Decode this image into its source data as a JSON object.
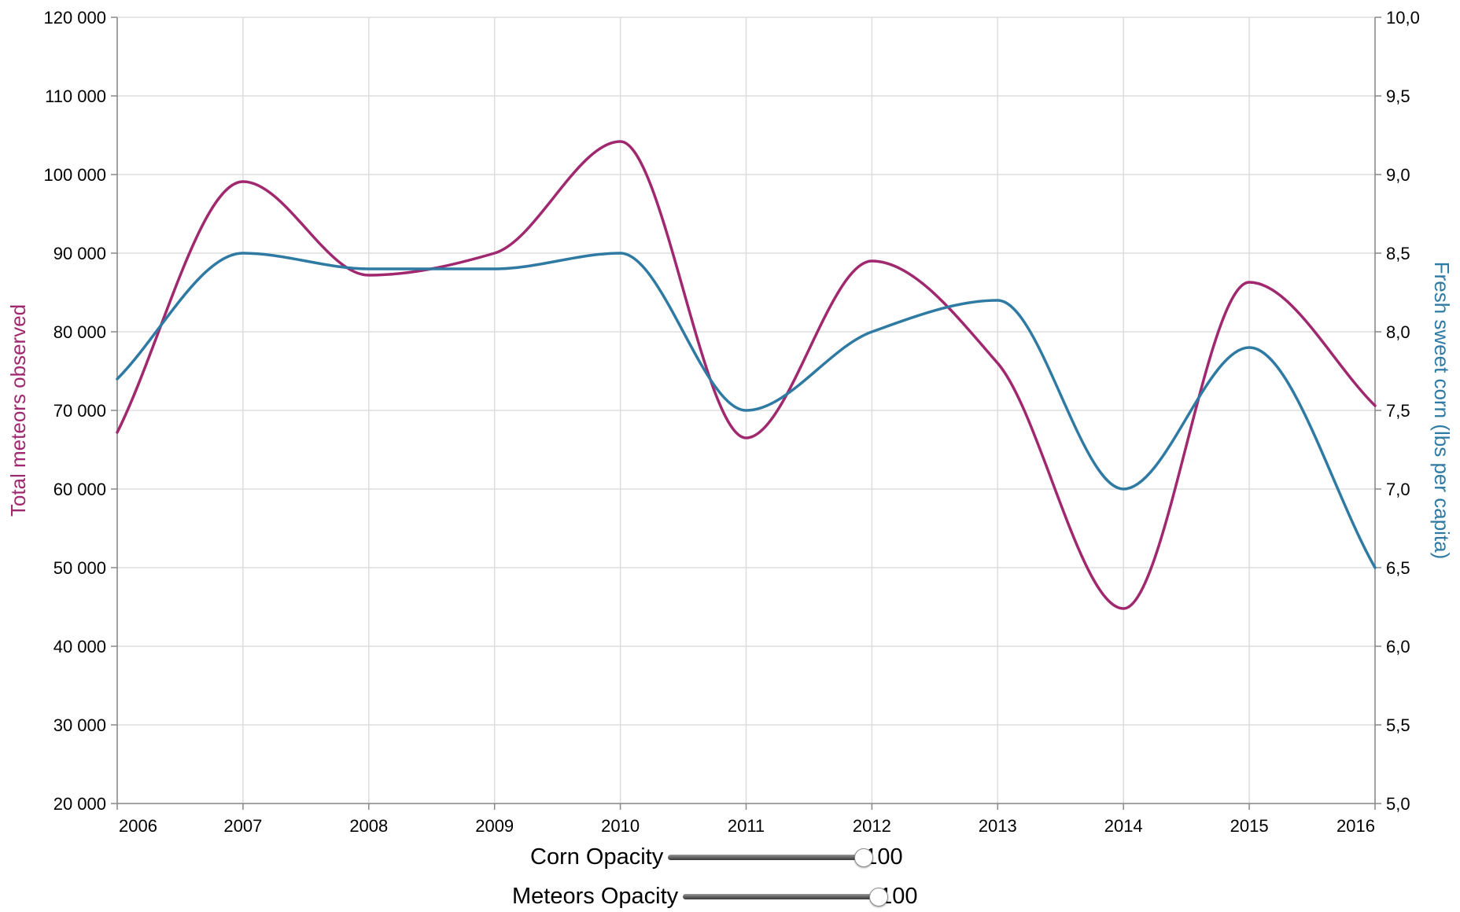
{
  "chart_data": {
    "type": "line",
    "x": [
      2006,
      2007,
      2008,
      2009,
      2010,
      2011,
      2012,
      2013,
      2014,
      2015,
      2016
    ],
    "x_tick_labels": [
      "2006",
      "2007",
      "2008",
      "2009",
      "2010",
      "2011",
      "2012",
      "2013",
      "2014",
      "2015",
      "2016"
    ],
    "series": [
      {
        "name": "Total meteors observed",
        "axis": "left",
        "color": "#a0286e",
        "values": [
          67200,
          99100,
          87200,
          90000,
          104200,
          66500,
          89000,
          76000,
          44800,
          86300,
          70600
        ]
      },
      {
        "name": "Fresh sweet corn (lbs per capita)",
        "axis": "right",
        "color": "#2f7aa3",
        "values": [
          7.7,
          8.5,
          8.4,
          8.4,
          8.5,
          7.5,
          8.0,
          8.2,
          7.0,
          7.9,
          6.5
        ]
      }
    ],
    "y_left": {
      "label": "Total meteors observed",
      "range": [
        20000,
        120000
      ],
      "tick_labels": [
        "20 000",
        "30 000",
        "40 000",
        "50 000",
        "60 000",
        "70 000",
        "80 000",
        "90 000",
        "100 000",
        "110 000",
        "120 000"
      ],
      "color": "#a0286e"
    },
    "y_right": {
      "label": "Fresh sweet corn (lbs per capita)",
      "range": [
        5.0,
        10.0
      ],
      "tick_labels": [
        "5,0",
        "5,5",
        "6,0",
        "6,5",
        "7,0",
        "7,5",
        "8,0",
        "8,5",
        "9,0",
        "9,5",
        "10,0"
      ],
      "color": "#2f7aa3"
    },
    "grid": true,
    "grid_color": "#dddddd",
    "axis_color": "#888888"
  },
  "controls": {
    "corn_label": "Corn Opacity",
    "corn_value": "100",
    "corn_fraction": 1.0,
    "meteors_label": "Meteors Opacity",
    "meteors_value": "100",
    "meteors_fraction": 1.0
  }
}
